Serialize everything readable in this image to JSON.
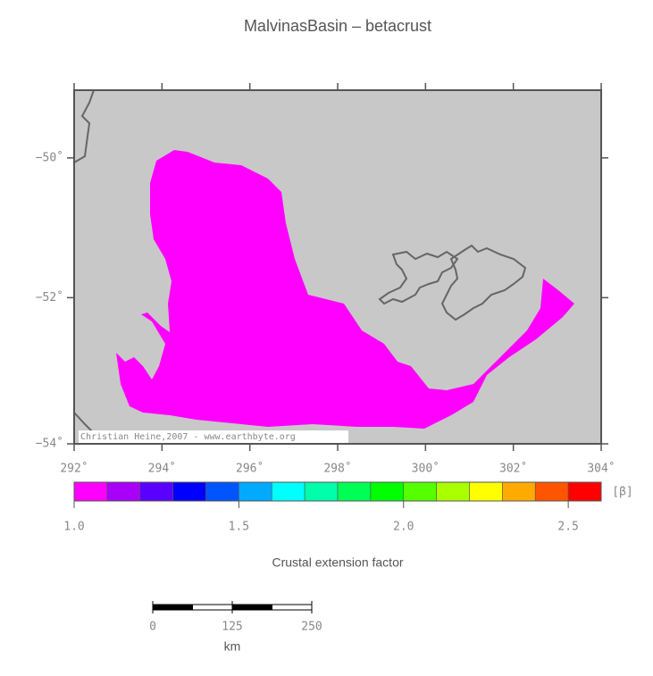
{
  "title": "MalvinasBasin – betacrust",
  "map": {
    "xlim": [
      292,
      304
    ],
    "ylim": [
      -54,
      -49
    ],
    "xticks": [
      {
        "value": 292,
        "label": "292˚"
      },
      {
        "value": 294,
        "label": "294˚"
      },
      {
        "value": 296,
        "label": "296˚"
      },
      {
        "value": 298,
        "label": "298˚"
      },
      {
        "value": 300,
        "label": "300˚"
      },
      {
        "value": 302,
        "label": "302˚"
      },
      {
        "value": 304,
        "label": "304˚"
      }
    ],
    "yticks": [
      {
        "value": -50,
        "label": "−50˚"
      },
      {
        "value": -52,
        "label": "−52˚"
      },
      {
        "value": -54,
        "label": "−54˚"
      }
    ],
    "credit": "Christian Heine,2007 - www.earthbyte.org"
  },
  "colorbar": {
    "lim": [
      1.0,
      2.6
    ],
    "colors": [
      "#ff00ff",
      "#a800f8",
      "#5a00ff",
      "#0000ff",
      "#0055ff",
      "#00aaff",
      "#00ffff",
      "#00ffaa",
      "#00ff55",
      "#00ff00",
      "#55ff00",
      "#aaff00",
      "#ffff00",
      "#ffaa00",
      "#ff5500",
      "#ff0000"
    ],
    "ticks": [
      {
        "value": 1,
        "label": "1.0"
      },
      {
        "value": 1.5,
        "label": "1.5"
      },
      {
        "value": 2,
        "label": "2.0"
      },
      {
        "value": 2.5,
        "label": "2.5"
      }
    ],
    "unit": "[β]",
    "label": "Crustal extension factor"
  },
  "scalebar": {
    "lim": [
      0,
      250
    ],
    "ticks": [
      0,
      125,
      250
    ],
    "unit": "km"
  }
}
